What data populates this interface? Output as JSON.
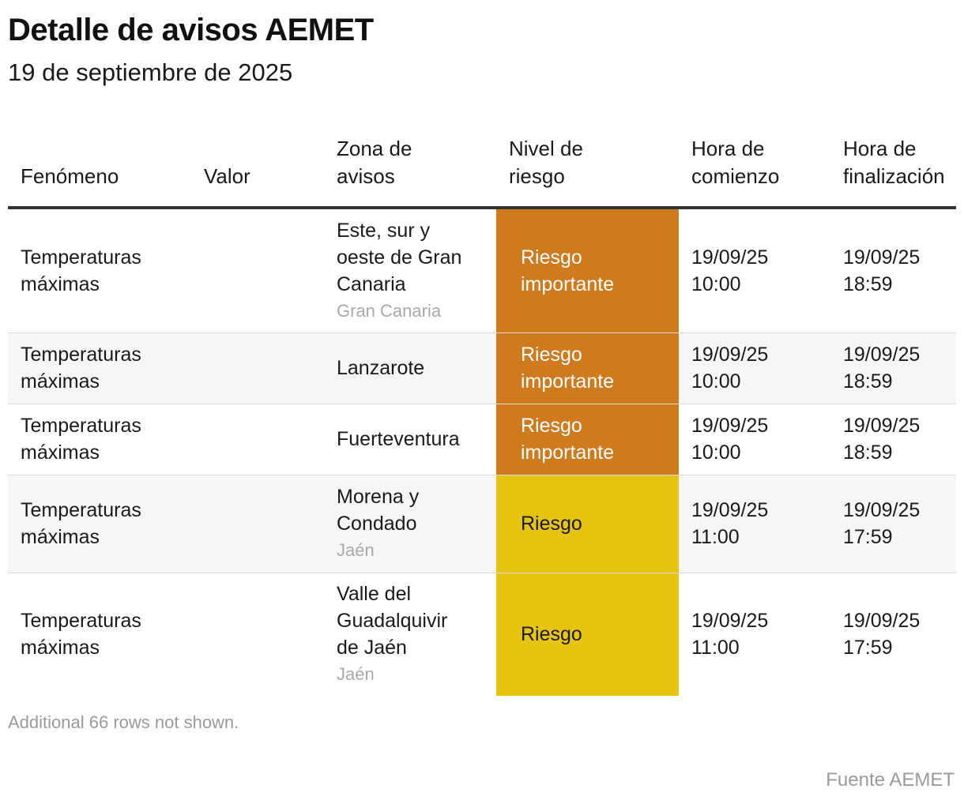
{
  "header": {
    "title": "Detalle de avisos AEMET",
    "subtitle": "19 de septiembre de 2025"
  },
  "table": {
    "columns": [
      {
        "key": "fenomeno",
        "line1": "",
        "line2": "Fenómeno"
      },
      {
        "key": "valor",
        "line1": "",
        "line2": "Valor"
      },
      {
        "key": "zona",
        "line1": "Zona de",
        "line2": "avisos"
      },
      {
        "key": "nivel",
        "line1": "Nivel de",
        "line2": "riesgo"
      },
      {
        "key": "comienzo",
        "line1": "Hora de",
        "line2": "comienzo"
      },
      {
        "key": "fin",
        "line1": "Hora de",
        "line2": "finalización"
      }
    ],
    "rows": [
      {
        "fenomeno": [
          "Temperaturas",
          "máximas"
        ],
        "valor": "",
        "zona": [
          "Este, sur y",
          "oeste de Gran",
          "Canaria"
        ],
        "zona_sub": "Gran Canaria",
        "nivel": [
          "Riesgo",
          "importante"
        ],
        "nivel_color": "#d07a1e",
        "comienzo": [
          "19/09/25",
          "10:00"
        ],
        "fin": [
          "19/09/25",
          "18:59"
        ],
        "shaded": false
      },
      {
        "fenomeno": [
          "Temperaturas",
          "máximas"
        ],
        "valor": "",
        "zona": [
          "Lanzarote"
        ],
        "zona_sub": "",
        "nivel": [
          "Riesgo",
          "importante"
        ],
        "nivel_color": "#d07a1e",
        "comienzo": [
          "19/09/25",
          "10:00"
        ],
        "fin": [
          "19/09/25",
          "18:59"
        ],
        "shaded": true
      },
      {
        "fenomeno": [
          "Temperaturas",
          "máximas"
        ],
        "valor": "",
        "zona": [
          "Fuerteventura"
        ],
        "zona_sub": "",
        "nivel": [
          "Riesgo",
          "importante"
        ],
        "nivel_color": "#d07a1e",
        "comienzo": [
          "19/09/25",
          "10:00"
        ],
        "fin": [
          "19/09/25",
          "18:59"
        ],
        "shaded": false
      },
      {
        "fenomeno": [
          "Temperaturas",
          "máximas"
        ],
        "valor": "",
        "zona": [
          "Morena y",
          "Condado"
        ],
        "zona_sub": "Jaén",
        "nivel": [
          "Riesgo"
        ],
        "nivel_color": "#e6c40f",
        "comienzo": [
          "19/09/25",
          "11:00"
        ],
        "fin": [
          "19/09/25",
          "17:59"
        ],
        "shaded": true
      },
      {
        "fenomeno": [
          "Temperaturas",
          "máximas"
        ],
        "valor": "",
        "zona": [
          "Valle del",
          "Guadalquivir",
          "de Jaén"
        ],
        "zona_sub": "Jaén",
        "nivel": [
          "Riesgo"
        ],
        "nivel_color": "#e6c40f",
        "comienzo": [
          "19/09/25",
          "11:00"
        ],
        "fin": [
          "19/09/25",
          "17:59"
        ],
        "shaded": false
      }
    ]
  },
  "footnote": "Additional 66 rows not shown.",
  "source": "Fuente AEMET"
}
